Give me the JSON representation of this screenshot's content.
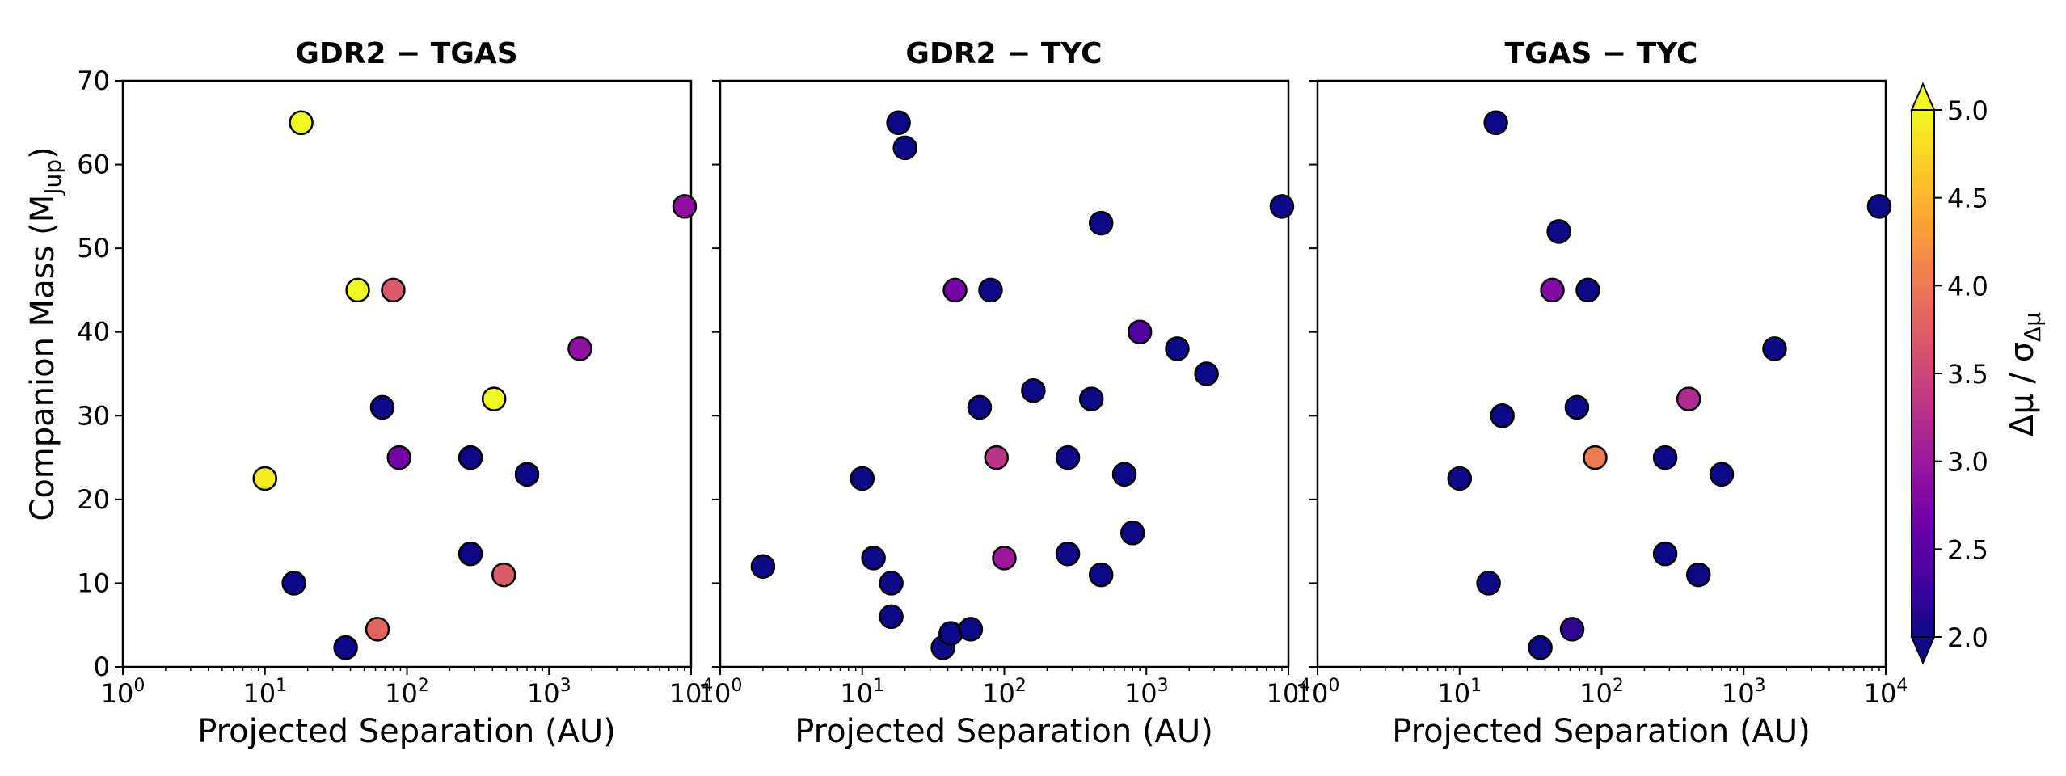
{
  "chart_data": {
    "type": "scatter",
    "figure": {
      "ylabel_text": "Companion Mass (M",
      "ylabel_sub": "Jup",
      "ylabel_close": ")",
      "xlabel": "Projected Separation (AU)",
      "xscale": "log",
      "xlim": [
        1,
        10000
      ],
      "ylim": [
        0,
        70
      ],
      "xticks": [
        {
          "value": 1,
          "base": "10",
          "exp": "0"
        },
        {
          "value": 10,
          "base": "10",
          "exp": "1"
        },
        {
          "value": 100,
          "base": "10",
          "exp": "2"
        },
        {
          "value": 1000,
          "base": "10",
          "exp": "3"
        },
        {
          "value": 10000,
          "base": "10",
          "exp": "4"
        }
      ],
      "yticks": [
        {
          "value": 0,
          "label": "0"
        },
        {
          "value": 10,
          "label": "10"
        },
        {
          "value": 20,
          "label": "20"
        },
        {
          "value": 30,
          "label": "30"
        },
        {
          "value": 40,
          "label": "40"
        },
        {
          "value": 50,
          "label": "50"
        },
        {
          "value": 60,
          "label": "60"
        },
        {
          "value": 70,
          "label": "70"
        }
      ]
    },
    "colorbar": {
      "label": "Δμ / σ",
      "label_sub": "Δμ",
      "range": [
        2.0,
        5.0
      ],
      "extend": "both",
      "colormap": "plasma",
      "ticks": [
        {
          "value": 2.0,
          "label": "2.0"
        },
        {
          "value": 2.5,
          "label": "2.5"
        },
        {
          "value": 3.0,
          "label": "3.0"
        },
        {
          "value": 3.5,
          "label": "3.5"
        },
        {
          "value": 4.0,
          "label": "4.0"
        },
        {
          "value": 4.5,
          "label": "4.5"
        },
        {
          "value": 5.0,
          "label": "5.0"
        }
      ],
      "stops": [
        "#0d0887",
        "#46039f",
        "#7201a8",
        "#9c179e",
        "#bd3786",
        "#d8576b",
        "#ed7953",
        "#fb9f3a",
        "#fdca26",
        "#f0f921"
      ]
    },
    "panels": [
      {
        "title": "GDR2 − TGAS",
        "points": [
          {
            "x": 18,
            "y": 65,
            "c": 5.0
          },
          {
            "x": 10,
            "y": 22.5,
            "c": 4.9
          },
          {
            "x": 16,
            "y": 10,
            "c": 2.0
          },
          {
            "x": 45,
            "y": 45,
            "c": 5.0
          },
          {
            "x": 80,
            "y": 45,
            "c": 3.7
          },
          {
            "x": 67,
            "y": 31,
            "c": 2.0
          },
          {
            "x": 88,
            "y": 25,
            "c": 2.7
          },
          {
            "x": 37,
            "y": 2.3,
            "c": 2.0
          },
          {
            "x": 62,
            "y": 4.5,
            "c": 3.8
          },
          {
            "x": 280,
            "y": 25,
            "c": 2.0
          },
          {
            "x": 280,
            "y": 13.5,
            "c": 2.0
          },
          {
            "x": 410,
            "y": 32,
            "c": 5.0
          },
          {
            "x": 700,
            "y": 23,
            "c": 2.0
          },
          {
            "x": 480,
            "y": 11,
            "c": 3.7
          },
          {
            "x": 1650,
            "y": 38,
            "c": 2.9
          },
          {
            "x": 9000,
            "y": 55,
            "c": 2.9
          }
        ]
      },
      {
        "title": "GDR2 − TYC",
        "points": [
          {
            "x": 2,
            "y": 12,
            "c": 2.0
          },
          {
            "x": 10,
            "y": 22.5,
            "c": 2.0
          },
          {
            "x": 12,
            "y": 13,
            "c": 2.0
          },
          {
            "x": 16,
            "y": 10,
            "c": 2.0
          },
          {
            "x": 16,
            "y": 6,
            "c": 2.0
          },
          {
            "x": 18,
            "y": 65,
            "c": 2.0
          },
          {
            "x": 20,
            "y": 62,
            "c": 2.0
          },
          {
            "x": 37,
            "y": 2.3,
            "c": 2.0
          },
          {
            "x": 42,
            "y": 4,
            "c": 2.0
          },
          {
            "x": 58,
            "y": 4.5,
            "c": 2.0
          },
          {
            "x": 45,
            "y": 45,
            "c": 2.7
          },
          {
            "x": 80,
            "y": 45,
            "c": 2.0
          },
          {
            "x": 67,
            "y": 31,
            "c": 2.0
          },
          {
            "x": 88,
            "y": 25,
            "c": 3.3
          },
          {
            "x": 100,
            "y": 13,
            "c": 3.0
          },
          {
            "x": 160,
            "y": 33,
            "c": 2.0
          },
          {
            "x": 280,
            "y": 25,
            "c": 2.0
          },
          {
            "x": 280,
            "y": 13.5,
            "c": 2.0
          },
          {
            "x": 410,
            "y": 32,
            "c": 2.0
          },
          {
            "x": 480,
            "y": 53,
            "c": 2.0
          },
          {
            "x": 480,
            "y": 11,
            "c": 2.0
          },
          {
            "x": 700,
            "y": 23,
            "c": 2.0
          },
          {
            "x": 800,
            "y": 16,
            "c": 2.0
          },
          {
            "x": 900,
            "y": 40,
            "c": 2.4
          },
          {
            "x": 1650,
            "y": 38,
            "c": 2.0
          },
          {
            "x": 2650,
            "y": 35,
            "c": 2.0
          },
          {
            "x": 9000,
            "y": 55,
            "c": 2.0
          }
        ]
      },
      {
        "title": "TGAS − TYC",
        "points": [
          {
            "x": 18,
            "y": 65,
            "c": 2.0
          },
          {
            "x": 10,
            "y": 22.5,
            "c": 2.0
          },
          {
            "x": 16,
            "y": 10,
            "c": 2.0
          },
          {
            "x": 20,
            "y": 30,
            "c": 2.0
          },
          {
            "x": 37,
            "y": 2.3,
            "c": 2.0
          },
          {
            "x": 62,
            "y": 4.5,
            "c": 2.2
          },
          {
            "x": 45,
            "y": 45,
            "c": 2.8
          },
          {
            "x": 80,
            "y": 45,
            "c": 2.0
          },
          {
            "x": 50,
            "y": 52,
            "c": 2.0
          },
          {
            "x": 67,
            "y": 31,
            "c": 2.0
          },
          {
            "x": 90,
            "y": 25,
            "c": 4.0
          },
          {
            "x": 280,
            "y": 25,
            "c": 2.0
          },
          {
            "x": 280,
            "y": 13.5,
            "c": 2.0
          },
          {
            "x": 410,
            "y": 32,
            "c": 3.2
          },
          {
            "x": 480,
            "y": 11,
            "c": 2.0
          },
          {
            "x": 700,
            "y": 23,
            "c": 2.0
          },
          {
            "x": 1650,
            "y": 38,
            "c": 2.0
          },
          {
            "x": 9000,
            "y": 55,
            "c": 2.0
          }
        ]
      }
    ]
  }
}
